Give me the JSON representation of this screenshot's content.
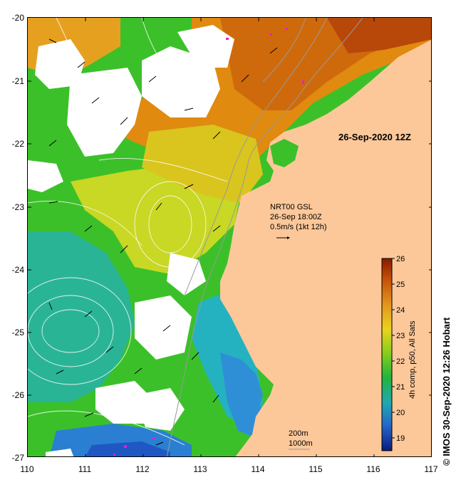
{
  "map": {
    "date_label": "26-Sep-2020 12Z",
    "current_legend": {
      "line1": "NRT00 GSL",
      "line2": "26-Sep 18:00Z",
      "line3": "0.5m/s (1kt 12h)"
    },
    "bathymetry_legend": {
      "line1": "200m",
      "line2": "1000m"
    },
    "colorbar": {
      "label": "4h comp, p50, All Sats",
      "min": 18.5,
      "max": 26,
      "ticks": [
        "19",
        "20",
        "21",
        "22",
        "23",
        "24",
        "25",
        "26"
      ]
    },
    "y_ticks": [
      "-20",
      "-21",
      "-22",
      "-23",
      "-24",
      "-25",
      "-26",
      "-27"
    ],
    "x_ticks": [
      "110",
      "111",
      "112",
      "113",
      "114",
      "115",
      "116",
      "117"
    ],
    "credit": "© IMOS 30-Sep-2020 12:26 Hobart"
  }
}
